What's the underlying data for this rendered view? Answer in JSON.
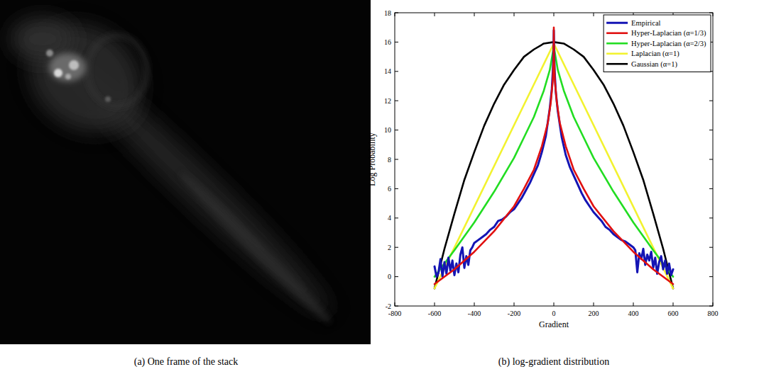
{
  "image_panel": {
    "caption": "(a) One frame of the stack"
  },
  "chart_data": {
    "type": "line",
    "caption": "(b) log-gradient distribution",
    "x_label": "Gradient",
    "y_label": "Log Probability",
    "xlim": [
      -800,
      800
    ],
    "xticks": [
      -800,
      -600,
      -400,
      -200,
      0,
      200,
      400,
      600,
      800
    ],
    "ylim": [
      -2,
      18
    ],
    "yticks": [
      -2,
      0,
      2,
      4,
      6,
      8,
      10,
      12,
      14,
      16,
      18
    ],
    "grid": false,
    "legend": "upper right",
    "series": [
      {
        "name": "Empirical",
        "color": "#1414b4",
        "x": [
          -600,
          -590,
          -580,
          -570,
          -560,
          -550,
          -540,
          -530,
          -520,
          -510,
          -500,
          -490,
          -480,
          -470,
          -460,
          -450,
          -440,
          -430,
          -420,
          -410,
          -400,
          -380,
          -360,
          -340,
          -320,
          -300,
          -280,
          -260,
          -240,
          -220,
          -200,
          -180,
          -160,
          -140,
          -120,
          -100,
          -80,
          -60,
          -40,
          -20,
          -10,
          -5,
          -2,
          0,
          2,
          5,
          10,
          20,
          40,
          60,
          80,
          100,
          120,
          140,
          160,
          180,
          200,
          220,
          240,
          260,
          280,
          300,
          320,
          340,
          360,
          380,
          400,
          410,
          420,
          430,
          440,
          450,
          460,
          470,
          480,
          490,
          500,
          510,
          520,
          530,
          540,
          550,
          560,
          570,
          580,
          590,
          600
        ],
        "values": [
          0.7,
          0,
          0.3,
          1.2,
          0,
          1.0,
          0.2,
          1.3,
          0.4,
          1.1,
          0.1,
          0.9,
          0.3,
          1.5,
          2.0,
          0.6,
          1.4,
          0.8,
          1.8,
          2.0,
          2.3,
          2.5,
          2.7,
          2.9,
          3.2,
          3.4,
          3.8,
          3.9,
          4.1,
          4.4,
          4.6,
          5.0,
          5.4,
          5.9,
          6.4,
          7.0,
          7.6,
          8.5,
          9.6,
          11.5,
          12.8,
          14,
          15.2,
          16.8,
          15.0,
          13.8,
          12.6,
          11.3,
          9.5,
          8.3,
          7.5,
          6.9,
          6.3,
          5.7,
          5.2,
          4.8,
          4.4,
          4.1,
          3.8,
          3.4,
          3.2,
          2.9,
          2.7,
          2.5,
          2.4,
          2.2,
          2.0,
          1.8,
          0.3,
          1.6,
          1.2,
          1.9,
          0.8,
          1.5,
          1.1,
          1.7,
          0.6,
          1.3,
          0.2,
          1.0,
          1.4,
          0.5,
          1.1,
          0.2,
          0.9,
          0.1,
          0.5
        ]
      },
      {
        "name": "Hyper-Laplacian (α=1/3)",
        "color": "#e01010",
        "x": [
          -600,
          -500,
          -400,
          -300,
          -200,
          -150,
          -100,
          -60,
          -30,
          -15,
          -5,
          -1,
          0,
          1,
          5,
          15,
          30,
          60,
          100,
          150,
          200,
          300,
          400,
          500,
          600
        ],
        "values": [
          -0.5,
          0.5,
          1.7,
          3.1,
          4.8,
          6.0,
          7.3,
          8.9,
          10.5,
          11.9,
          13.4,
          14.9,
          17,
          14.9,
          13.4,
          11.9,
          10.5,
          8.9,
          7.3,
          6.0,
          4.8,
          3.1,
          1.7,
          0.5,
          -0.5
        ]
      },
      {
        "name": "Hyper-Laplacian (α=2/3)",
        "color": "#22dd22",
        "x": [
          -600,
          -500,
          -400,
          -300,
          -200,
          -150,
          -100,
          -50,
          -20,
          0,
          20,
          50,
          100,
          150,
          200,
          300,
          400,
          500,
          600
        ],
        "values": [
          0,
          1.8,
          3.7,
          5.8,
          8.1,
          9.5,
          10.9,
          12.7,
          14.1,
          15.7,
          14.1,
          12.7,
          10.9,
          9.5,
          8.1,
          5.8,
          3.7,
          1.8,
          0
        ]
      },
      {
        "name": "Laplacian (α=1)",
        "color": "#f2f230",
        "x": [
          -600,
          0,
          600
        ],
        "values": [
          -0.8,
          15.9,
          -0.8
        ]
      },
      {
        "name": "Gaussian (α=1)",
        "color": "#000000",
        "x": [
          -600,
          -550,
          -500,
          -450,
          -400,
          -350,
          -300,
          -250,
          -200,
          -150,
          -100,
          -50,
          0,
          50,
          100,
          150,
          200,
          250,
          300,
          350,
          400,
          450,
          500,
          550,
          600
        ],
        "values": [
          -0.8,
          1.9,
          4.3,
          6.6,
          8.5,
          10.3,
          11.8,
          13.1,
          14.1,
          15.0,
          15.5,
          15.9,
          16,
          15.9,
          15.5,
          15.0,
          14.1,
          13.1,
          11.8,
          10.3,
          8.5,
          6.6,
          4.3,
          1.9,
          -0.8
        ]
      }
    ]
  }
}
